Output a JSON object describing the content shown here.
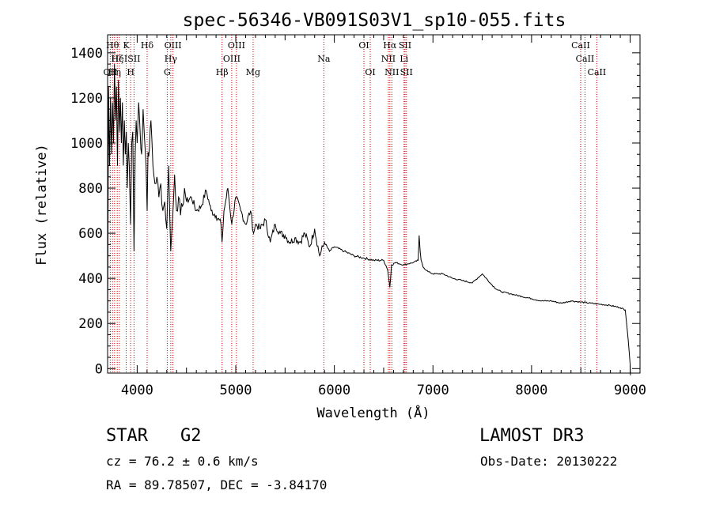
{
  "chart_data": {
    "type": "line",
    "title": "spec-56346-VB091S03V1_sp10-055.fits",
    "xlabel": "Wavelength (Å)",
    "ylabel": "Flux (relative)",
    "xlim": [
      3700,
      9100
    ],
    "ylim": [
      -20,
      1480
    ],
    "xticks": [
      4000,
      5000,
      6000,
      7000,
      8000,
      9000
    ],
    "yticks": [
      0,
      200,
      400,
      600,
      800,
      1000,
      1200,
      1400
    ],
    "series": [
      {
        "name": "flux",
        "x": [
          3700,
          3710,
          3720,
          3730,
          3740,
          3750,
          3760,
          3770,
          3780,
          3790,
          3800,
          3810,
          3820,
          3830,
          3840,
          3850,
          3860,
          3870,
          3880,
          3890,
          3900,
          3910,
          3920,
          3933,
          3945,
          3955,
          3968,
          3980,
          3990,
          4000,
          4015,
          4030,
          4045,
          4060,
          4075,
          4090,
          4101,
          4110,
          4125,
          4140,
          4160,
          4180,
          4200,
          4220,
          4240,
          4260,
          4280,
          4300,
          4320,
          4340,
          4361,
          4380,
          4400,
          4420,
          4440,
          4460,
          4480,
          4500,
          4550,
          4600,
          4650,
          4700,
          4750,
          4800,
          4850,
          4861,
          4880,
          4920,
          4960,
          5000,
          5050,
          5100,
          5150,
          5180,
          5200,
          5250,
          5300,
          5350,
          5400,
          5450,
          5500,
          5550,
          5600,
          5650,
          5700,
          5750,
          5800,
          5850,
          5900,
          5950,
          6000,
          6100,
          6200,
          6300,
          6400,
          6500,
          6540,
          6563,
          6580,
          6620,
          6700,
          6800,
          6850,
          6860,
          6870,
          6880,
          6900,
          6950,
          7000,
          7100,
          7200,
          7300,
          7400,
          7500,
          7600,
          7650,
          7700,
          7800,
          7900,
          8000,
          8100,
          8200,
          8300,
          8400,
          8500,
          8600,
          8700,
          8800,
          8900,
          8950,
          8980,
          9000,
          9003
        ],
        "y": [
          100,
          1250,
          900,
          1200,
          950,
          1180,
          1000,
          1350,
          1100,
          1250,
          900,
          1280,
          1050,
          1200,
          1000,
          1180,
          900,
          1100,
          950,
          1050,
          800,
          1000,
          900,
          640,
          1000,
          1050,
          520,
          950,
          1100,
          1000,
          1180,
          1050,
          950,
          1150,
          1020,
          900,
          700,
          960,
          980,
          1100,
          900,
          820,
          850,
          760,
          820,
          700,
          740,
          620,
          900,
          520,
          680,
          860,
          700,
          760,
          680,
          720,
          800,
          740,
          760,
          700,
          720,
          790,
          700,
          680,
          640,
          560,
          700,
          800,
          640,
          760,
          700,
          640,
          700,
          600,
          640,
          620,
          660,
          560,
          640,
          600,
          590,
          560,
          580,
          560,
          600,
          540,
          620,
          500,
          560,
          520,
          540,
          520,
          500,
          490,
          480,
          480,
          440,
          360,
          460,
          470,
          460,
          470,
          480,
          590,
          520,
          480,
          450,
          430,
          420,
          420,
          400,
          390,
          380,
          420,
          370,
          350,
          340,
          330,
          320,
          310,
          300,
          300,
          290,
          300,
          295,
          290,
          285,
          280,
          270,
          260,
          130,
          20,
          -30
        ]
      }
    ],
    "spectral_lines": [
      {
        "label": "OII",
        "x": 3727,
        "level": 3
      },
      {
        "label": "Hθ",
        "x": 3750,
        "level": 1
      },
      {
        "label": "Hη",
        "x": 3771,
        "level": 3
      },
      {
        "label": "Hζ",
        "x": 3798,
        "level": 2
      },
      {
        "label": "HeI",
        "x": 3820,
        "level": 2
      },
      {
        "label": "K",
        "x": 3889,
        "level": 1
      },
      {
        "label": "H",
        "x": 3934,
        "level": 3
      },
      {
        "label": "SII",
        "x": 3968,
        "level": 2
      },
      {
        "label": "Hδ",
        "x": 4101,
        "level": 1
      },
      {
        "label": "G",
        "x": 4305,
        "level": 3
      },
      {
        "label": "Hγ",
        "x": 4341,
        "level": 2
      },
      {
        "label": "OIII",
        "x": 4363,
        "level": 1
      },
      {
        "label": "Hβ",
        "x": 4861,
        "level": 3
      },
      {
        "label": "OIII",
        "x": 4959,
        "level": 2
      },
      {
        "label": "OIII",
        "x": 5007,
        "level": 1
      },
      {
        "label": "Mg",
        "x": 5176,
        "level": 3
      },
      {
        "label": "Na",
        "x": 5893,
        "level": 2
      },
      {
        "label": "OI",
        "x": 6300,
        "level": 1
      },
      {
        "label": "OI",
        "x": 6364,
        "level": 3
      },
      {
        "label": "NII",
        "x": 6548,
        "level": 2
      },
      {
        "label": "Hα",
        "x": 6563,
        "level": 1
      },
      {
        "label": "NII",
        "x": 6583,
        "level": 3
      },
      {
        "label": "Li",
        "x": 6707,
        "level": 2
      },
      {
        "label": "SII",
        "x": 6717,
        "level": 1
      },
      {
        "label": "SII",
        "x": 6731,
        "level": 3
      },
      {
        "label": "CaII",
        "x": 8498,
        "level": 1
      },
      {
        "label": "CaII",
        "x": 8542,
        "level": 2
      },
      {
        "label": "CaII",
        "x": 8662,
        "level": 3
      }
    ]
  },
  "info": {
    "object_class": "STAR",
    "subclass": "G2",
    "survey": "LAMOST DR3",
    "cz": "cz = 76.2 ± 0.6 km/s",
    "obs_date": "Obs-Date: 20130222",
    "coords": "RA =  89.78507, DEC =  -3.84170"
  },
  "colors": {
    "line": "#000000",
    "marker": "#cc0000"
  }
}
